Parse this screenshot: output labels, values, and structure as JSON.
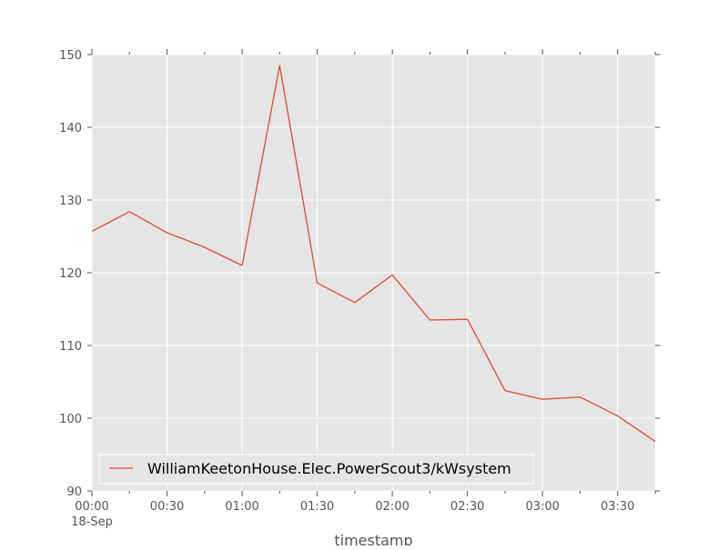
{
  "chart_data": {
    "type": "line",
    "xlabel": "timestamp",
    "ylabel": "",
    "ylim": [
      90,
      150
    ],
    "xlim": [
      "2017-09-18 00:00",
      "2017-09-18 03:45"
    ],
    "yticks": [
      90,
      100,
      110,
      120,
      130,
      140,
      150
    ],
    "xticks": [
      {
        "time": "00:00",
        "label": "00:00",
        "sublabel": "18-Sep"
      },
      {
        "time": "00:30",
        "label": "00:30"
      },
      {
        "time": "01:00",
        "label": "01:00"
      },
      {
        "time": "01:30",
        "label": "01:30"
      },
      {
        "time": "02:00",
        "label": "02:00"
      },
      {
        "time": "02:30",
        "label": "02:30"
      },
      {
        "time": "03:00",
        "label": "03:00"
      },
      {
        "time": "03:30",
        "label": "03:30"
      }
    ],
    "grid": true,
    "legend_position": "lower-left",
    "colors": {
      "series": "#e24a33",
      "plot_bg": "#e5e5e5",
      "grid": "#ffffff"
    },
    "series": [
      {
        "name": "WilliamKeetonHouse.Elec.PowerScout3/kWsystem",
        "x": [
          "00:00",
          "00:15",
          "00:30",
          "00:45",
          "01:00",
          "01:15",
          "01:30",
          "01:45",
          "02:00",
          "02:15",
          "02:30",
          "02:45",
          "03:00",
          "03:15",
          "03:30",
          "03:45"
        ],
        "y": [
          125.7,
          128.4,
          125.5,
          123.5,
          121.0,
          148.5,
          118.6,
          115.9,
          119.7,
          113.5,
          113.6,
          103.8,
          102.6,
          102.9,
          100.3,
          96.8
        ]
      }
    ]
  }
}
